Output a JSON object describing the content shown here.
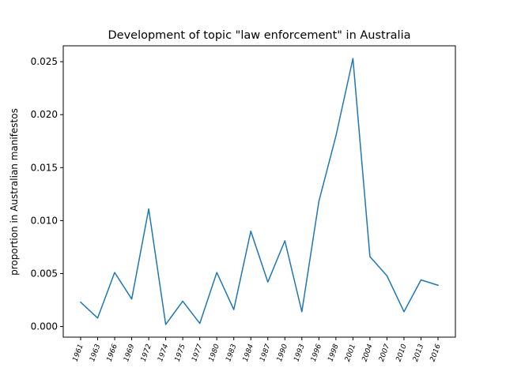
{
  "chart_data": {
    "type": "line",
    "title": "Development of topic \"law enforcement\" in Australia",
    "xlabel": "",
    "ylabel": "proportion in Australian manifestos",
    "categories": [
      "1961",
      "1963",
      "1966",
      "1969",
      "1972",
      "1974",
      "1975",
      "1977",
      "1980",
      "1983",
      "1984",
      "1987",
      "1990",
      "1993",
      "1996",
      "1998",
      "2001",
      "2004",
      "2007",
      "2010",
      "2013",
      "2016"
    ],
    "series": [
      {
        "values": [
          0.0023,
          0.0008,
          0.0051,
          0.0026,
          0.0111,
          0.0002,
          0.0024,
          0.0003,
          0.0051,
          0.0016,
          0.009,
          0.0042,
          0.0081,
          0.0014,
          0.0118,
          0.018,
          0.0253,
          0.0066,
          0.0048,
          0.0014,
          0.0044,
          0.0039
        ],
        "color": "#1f77b4"
      }
    ],
    "ylim": [
      -0.001,
      0.0265
    ],
    "yticks": [
      "0.000",
      "0.005",
      "0.010",
      "0.015",
      "0.020",
      "0.025"
    ],
    "ytick_values": [
      0,
      0.005,
      0.01,
      0.015,
      0.02,
      0.025
    ],
    "grid": false,
    "legend": "none"
  }
}
